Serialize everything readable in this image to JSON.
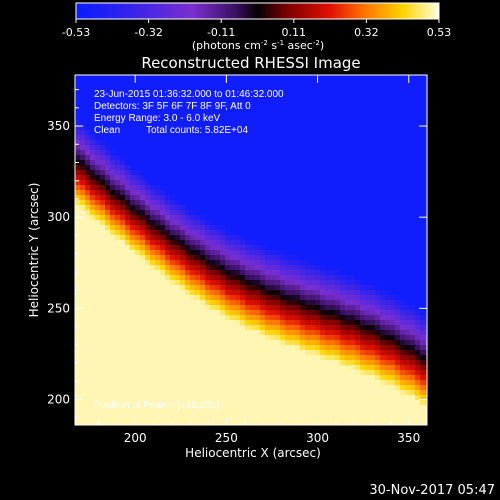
{
  "colorbar": {
    "ticks": [
      "-0.53",
      "-0.32",
      "-0.11",
      "0.11",
      "0.32",
      "0.53"
    ],
    "unit_label": "(photons cm",
    "unit_exp1": "-2",
    "unit_mid": " s",
    "unit_exp2": "-1",
    "unit_mid2": " asec",
    "unit_exp3": "-2",
    "unit_end": ")"
  },
  "title": "Reconstructed RHESSI Image",
  "annotations": {
    "time_range": "23-Jun-2015 01:36:32.000 to 01:46:32.000",
    "detectors": "Detectors: 3F 5F 6F 7F 8F 9F, Att 0",
    "energy": "Energy Range: 3.0 - 6.0 keV",
    "clean": "Clean",
    "counts": "Total counts: 5.82E+04",
    "peak": "Position of Peak = [168,231]"
  },
  "footer_timestamp": "30-Nov-2017 05:47",
  "chart_data": {
    "type": "heatmap",
    "colormap": "RHESSI (blue-purple-black-red-yellow-white)",
    "colorbar_range": [
      -0.53,
      0.53
    ],
    "xlabel": "Heliocentric X (arcsec)",
    "ylabel": "Heliocentric Y (arcsec)",
    "xlim": [
      167,
      360
    ],
    "ylim": [
      186,
      378
    ],
    "x_ticks": [
      200,
      250,
      300,
      350
    ],
    "y_ticks": [
      200,
      250,
      300,
      350
    ],
    "peak_position": [
      168,
      231
    ],
    "frame_color": "#ffffff"
  }
}
